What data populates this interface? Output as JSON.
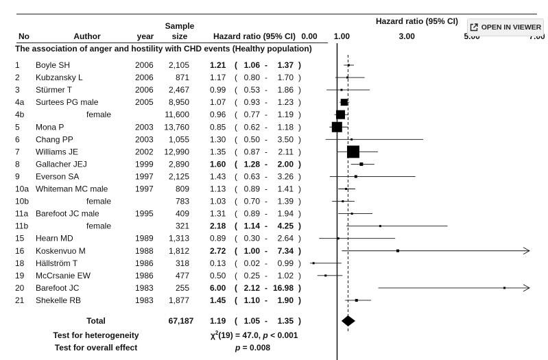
{
  "toolbar": {
    "open_in_viewer_label": "OPEN IN VIEWER"
  },
  "chart_data": {
    "type": "forest",
    "title": "The association of anger and hostility with CHD events (Healthy population)",
    "columns": {
      "no": "No",
      "author": "Author",
      "year": "year",
      "sample_line1": "Sample",
      "sample_line2": "size",
      "hr": "Hazard ratio (95% CI)"
    },
    "axis": {
      "label": "Hazard ratio (95% CI)",
      "ticks": [
        {
          "label": "0.00",
          "value": 0
        },
        {
          "label": "1.00",
          "value": 1
        },
        {
          "label": "3.00",
          "value": 3
        },
        {
          "label": "5.00",
          "value": 5
        },
        {
          "label": "7.00",
          "value": 7
        }
      ],
      "xlim": [
        0,
        7
      ],
      "reference_value": 1.19
    },
    "rows": [
      {
        "no": "1",
        "author": "Boyle SH",
        "year": "2006",
        "size": "2,105",
        "hr": "1.21",
        "lo": "1.06",
        "hi": "1.37",
        "bold": true,
        "box": 3
      },
      {
        "no": "2",
        "author": "Kubzansky L",
        "year": "2006",
        "size": "871",
        "hr": "1.17",
        "lo": "0.80",
        "hi": "1.70",
        "bold": false,
        "box": 3
      },
      {
        "no": "3",
        "author": "Stürmer T",
        "year": "2006",
        "size": "2,467",
        "hr": "0.99",
        "lo": "0.53",
        "hi": "1.86",
        "bold": false,
        "box": 3
      },
      {
        "no": "4a",
        "author": "Surtees PG male",
        "year": "2005",
        "size": "8,950",
        "hr": "1.07",
        "lo": "0.93",
        "hi": "1.23",
        "bold": false,
        "box": 10
      },
      {
        "no": "4b",
        "author": "female",
        "year": "",
        "size": "11,600",
        "hr": "0.96",
        "lo": "0.77",
        "hi": "1.19",
        "bold": false,
        "box": 13
      },
      {
        "no": "5",
        "author": "Mona P",
        "year": "2003",
        "size": "13,760",
        "hr": "0.85",
        "lo": "0.62",
        "hi": "1.18",
        "bold": false,
        "box": 15
      },
      {
        "no": "6",
        "author": "Chang PP",
        "year": "2003",
        "size": "1,055",
        "hr": "1.30",
        "lo": "0.50",
        "hi": "3.50",
        "bold": false,
        "box": 3
      },
      {
        "no": "7",
        "author": "Williams JE",
        "year": "2002",
        "size": "12,990",
        "hr": "1.35",
        "lo": "0.87",
        "hi": "2.11",
        "bold": false,
        "box": 18
      },
      {
        "no": "8",
        "author": "Gallacher JEJ",
        "year": "1999",
        "size": "2,890",
        "hr": "1.60",
        "lo": "1.28",
        "hi": "2.00",
        "bold": true,
        "box": 5
      },
      {
        "no": "9",
        "author": "Everson SA",
        "year": "1997",
        "size": "2,125",
        "hr": "1.43",
        "lo": "0.63",
        "hi": "3.26",
        "bold": false,
        "box": 4
      },
      {
        "no": "10a",
        "author": "Whiteman MC male",
        "year": "1997",
        "size": "809",
        "hr": "1.13",
        "lo": "0.89",
        "hi": "1.41",
        "bold": false,
        "box": 3
      },
      {
        "no": "10b",
        "author": "female",
        "year": "",
        "size": "783",
        "hr": "1.03",
        "lo": "0.70",
        "hi": "1.39",
        "bold": false,
        "box": 3
      },
      {
        "no": "11a",
        "author": "Barefoot JC male",
        "year": "1995",
        "size": "409",
        "hr": "1.31",
        "lo": "0.89",
        "hi": "1.94",
        "bold": false,
        "box": 3
      },
      {
        "no": "11b",
        "author": "female",
        "year": "",
        "size": "321",
        "hr": "2.18",
        "lo": "1.14",
        "hi": "4.25",
        "bold": true,
        "box": 3
      },
      {
        "no": "15",
        "author": "Hearn MD",
        "year": "1989",
        "size": "1,313",
        "hr": "0.89",
        "lo": "0.30",
        "hi": "2.64",
        "bold": false,
        "box": 3
      },
      {
        "no": "16",
        "author": "Koskenvuo M",
        "year": "1988",
        "size": "1,812",
        "hr": "2.72",
        "lo": "1.00",
        "hi": "7.34",
        "bold": true,
        "box": 4
      },
      {
        "no": "18",
        "author": "Hällström T",
        "year": "1986",
        "size": "318",
        "hr": "0.13",
        "lo": "0.02",
        "hi": "0.99",
        "bold": false,
        "box": 3
      },
      {
        "no": "19",
        "author": "McCrsanie EW",
        "year": "1986",
        "size": "477",
        "hr": "0.50",
        "lo": "0.25",
        "hi": "1.02",
        "bold": false,
        "box": 3
      },
      {
        "no": "20",
        "author": "Barefoot JC",
        "year": "1983",
        "size": "255",
        "hr": "6.00",
        "lo": "2.12",
        "hi": "16.98",
        "bold": true,
        "box": 3
      },
      {
        "no": "21",
        "author": "Shekelle RB",
        "year": "1983",
        "size": "1,877",
        "hr": "1.45",
        "lo": "1.10",
        "hi": "1.90",
        "bold": true,
        "box": 4
      }
    ],
    "total": {
      "label": "Total",
      "size": "67,187",
      "hr": "1.19",
      "lo": "1.05",
      "hi": "1.35"
    },
    "heterogeneity": {
      "label": "Test for heterogeneity",
      "chi_symbol": "χ",
      "chi_sup": "2",
      "chi_df": "(19)",
      "chi_value": "= 47.0,",
      "p_symbol": "p",
      "p_text": "< 0.001"
    },
    "overall": {
      "label": "Test for overall effect",
      "p_symbol": "p",
      "p_text": "= 0.008"
    }
  }
}
